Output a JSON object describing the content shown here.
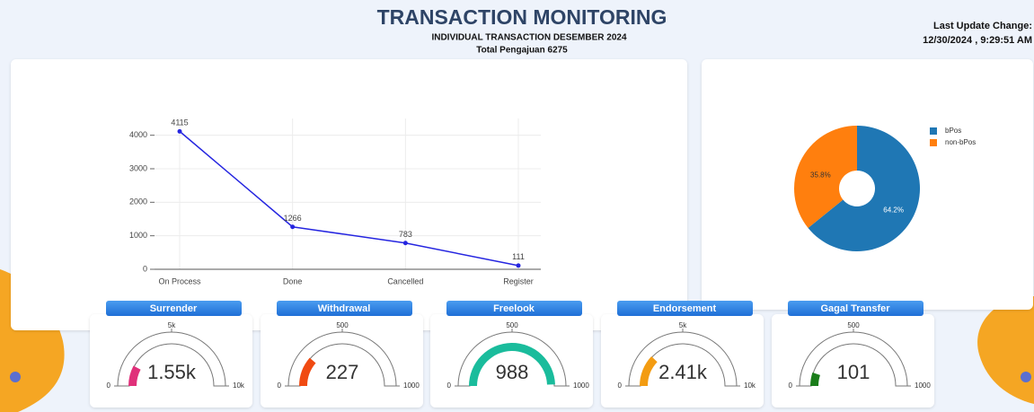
{
  "header": {
    "title": "TRANSACTION MONITORING",
    "subtitle": "INDIVIDUAL TRANSACTION DESEMBER 2024",
    "total": "Total Pengajuan 6275"
  },
  "update": {
    "label": "Last Update Change:",
    "value": "12/30/2024 , 9:29:51 AM"
  },
  "chart_data": [
    {
      "type": "line",
      "categories": [
        "On Process",
        "Done",
        "Cancelled",
        "Register"
      ],
      "values": [
        4115,
        1266,
        783,
        111
      ],
      "color": "#2525e0",
      "ylim": [
        0,
        4500
      ],
      "yticks": [
        0,
        1000,
        2000,
        3000,
        4000
      ],
      "grid": true
    },
    {
      "type": "pie",
      "categories": [
        "bPos",
        "non-bPos"
      ],
      "values": [
        64.2,
        35.8
      ],
      "value_labels": [
        "64.2%",
        "35.8%"
      ],
      "colors": [
        "#1f77b4",
        "#ff7f0e"
      ],
      "legend": "right"
    },
    {
      "type": "gauge",
      "title": "Surrender",
      "values": [
        1550
      ],
      "value_labels": [
        "1.55k"
      ],
      "color": "#e0307a",
      "ylim": [
        0,
        10000
      ],
      "yticks": [
        0,
        {
          "value": 5000,
          "label": "5k"
        },
        {
          "value": 10000,
          "label": "10k"
        }
      ]
    },
    {
      "type": "gauge",
      "title": "Withdrawal",
      "values": [
        227
      ],
      "color": "#f04a12",
      "ylim": [
        0,
        1000
      ],
      "yticks": [
        0,
        500,
        1000
      ]
    },
    {
      "type": "gauge",
      "title": "Freelook",
      "values": [
        988
      ],
      "color": "#1abc9c",
      "ylim": [
        0,
        1000
      ],
      "yticks": [
        0,
        500,
        1000
      ]
    },
    {
      "type": "gauge",
      "title": "Endorsement",
      "values": [
        2410
      ],
      "value_labels": [
        "2.41k"
      ],
      "color": "#f39c12",
      "ylim": [
        0,
        10000
      ],
      "yticks": [
        0,
        {
          "value": 5000,
          "label": "5k"
        },
        {
          "value": 10000,
          "label": "10k"
        }
      ]
    },
    {
      "type": "gauge",
      "title": "Gagal Transfer",
      "values": [
        101
      ],
      "color": "#1a7d1a",
      "ylim": [
        0,
        1000
      ],
      "yticks": [
        0,
        500,
        1000
      ]
    }
  ]
}
